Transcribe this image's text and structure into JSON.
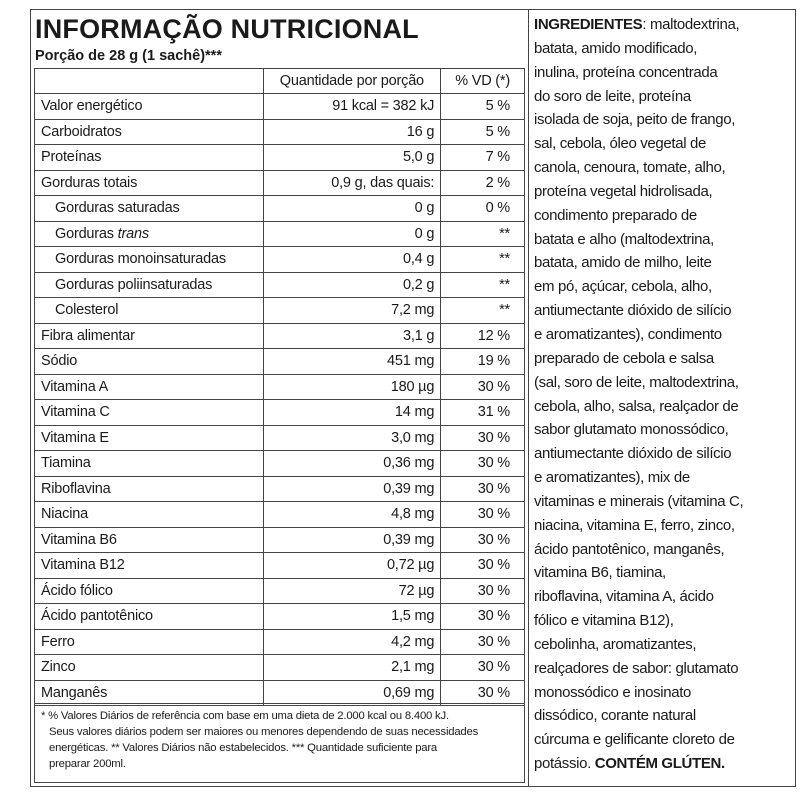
{
  "title": "INFORMAÇÃO NUTRICIONAL",
  "portion": "Porção de 28 g (1 sachê)***",
  "table": {
    "headers": [
      "",
      "Quantidade por porção",
      "% VD (*)"
    ],
    "rows": [
      {
        "name": "Valor energético",
        "value": "91 kcal = 382 kJ",
        "vd": "5 %"
      },
      {
        "name": "Carboidratos",
        "value": "16 g",
        "vd": "5 %"
      },
      {
        "name": "Proteínas",
        "value": "5,0 g",
        "vd": "7 %"
      },
      {
        "name": "Gorduras totais",
        "value": "0,9 g, das quais:",
        "vd": "2 %"
      },
      {
        "name": "Gorduras saturadas",
        "value": "0 g",
        "vd": "0 %",
        "indent": true
      },
      {
        "name": "Gorduras ",
        "name_italic": "trans",
        "value": "0 g",
        "vd": "**",
        "indent": true
      },
      {
        "name": "Gorduras monoinsaturadas",
        "value": "0,4 g",
        "vd": "**",
        "indent": true
      },
      {
        "name": "Gorduras poliinsaturadas",
        "value": "0,2 g",
        "vd": "**",
        "indent": true
      },
      {
        "name": "Colesterol",
        "value": "7,2 mg",
        "vd": "**",
        "indent": true
      },
      {
        "name": "Fibra alimentar",
        "value": "3,1 g",
        "vd": "12 %"
      },
      {
        "name": "Sódio",
        "value": "451 mg",
        "vd": "19 %"
      },
      {
        "name": "Vitamina A",
        "value": "180 µg",
        "vd": "30 %"
      },
      {
        "name": "Vitamina C",
        "value": "14 mg",
        "vd": "31 %"
      },
      {
        "name": "Vitamina E",
        "value": "3,0 mg",
        "vd": "30 %"
      },
      {
        "name": "Tiamina",
        "value": "0,36 mg",
        "vd": "30 %"
      },
      {
        "name": "Riboflavina",
        "value": "0,39 mg",
        "vd": "30 %"
      },
      {
        "name": "Niacina",
        "value": "4,8 mg",
        "vd": "30 %"
      },
      {
        "name": "Vitamina B6",
        "value": "0,39 mg",
        "vd": "30 %"
      },
      {
        "name": "Vitamina B12",
        "value": "0,72 µg",
        "vd": "30 %"
      },
      {
        "name": "Ácido fólico",
        "value": "72 µg",
        "vd": "30 %"
      },
      {
        "name": "Ácido pantotênico",
        "value": "1,5 mg",
        "vd": "30 %"
      },
      {
        "name": "Ferro",
        "value": "4,2 mg",
        "vd": "30 %"
      },
      {
        "name": "Zinco",
        "value": "2,1 mg",
        "vd": "30 %"
      },
      {
        "name": "Manganês",
        "value": "0,69 mg",
        "vd": "30 %"
      }
    ]
  },
  "footnote": [
    "* % Valores Diários de referência com base em uma dieta de 2.000 kcal ou 8.400 kJ.",
    "Seus valores diários podem ser maiores ou menores dependendo de suas necessidades",
    "energéticas. ** Valores Diários não estabelecidos. *** Quantidade suficiente para",
    "preparar 200ml."
  ],
  "ingredients": {
    "label": "INGREDIENTES",
    "first_line": ": maltodextrina,",
    "lines": [
      "batata, amido modificado,",
      "inulina, proteína concentrada",
      "do soro de leite, proteína",
      "isolada de soja, peito de frango,",
      "sal, cebola, óleo vegetal de",
      "canola, cenoura, tomate, alho,",
      "proteína vegetal hidrolisada,",
      "condimento preparado de",
      "batata e alho (maltodextrina,",
      "batata, amido de milho, leite",
      "em pó, açúcar, cebola, alho,",
      "antiumectante dióxido de silício",
      "e aromatizantes), condimento",
      "preparado de cebola e salsa",
      "(sal, soro de leite, maltodextrina,",
      "cebola, alho, salsa, realçador de",
      "sabor glutamato monossódico,",
      "antiumectante dióxido de silício",
      "e aromatizantes), mix de",
      "vitaminas e minerais (vitamina C,",
      "niacina, vitamina E, ferro, zinco,",
      "ácido pantotênico, manganês,",
      "vitamina B6, tiamina,",
      "riboflavina, vitamina A, ácido",
      "fólico e vitamina B12),",
      "cebolinha, aromatizantes,",
      "realçadores de sabor: glutamato",
      "monossódico e inosinato",
      "dissódico, corante natural",
      "cúrcuma e gelificante cloreto de"
    ],
    "last_line": "potássio. ",
    "warning": "CONTÉM GLÚTEN."
  }
}
